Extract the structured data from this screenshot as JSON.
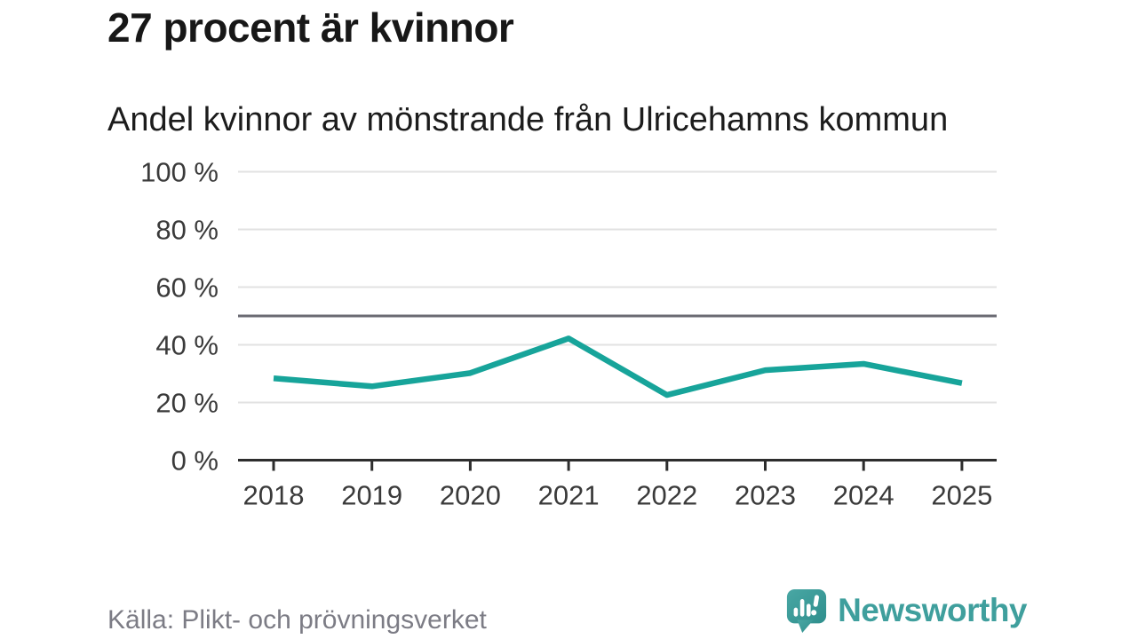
{
  "chart_data": {
    "type": "line",
    "title": "27 procent är kvinnor",
    "subtitle": "Andel kvinnor av mönstrande från Ulricehamns kommun",
    "source": "Källa: Plikt- och prövningsverket",
    "x": [
      2018,
      2019,
      2020,
      2021,
      2022,
      2023,
      2024,
      2025
    ],
    "xtick_labels": [
      "2018",
      "2019",
      "2020",
      "2021",
      "2022",
      "2023",
      "2024",
      "2025"
    ],
    "series": [
      {
        "name": "Andel kvinnor av mönstrande (%)",
        "values": [
          28.4,
          25.6,
          30.2,
          42.2,
          22.6,
          31.2,
          33.4,
          26.7
        ]
      }
    ],
    "ylim": [
      0,
      100
    ],
    "yticks": [
      0,
      20,
      40,
      60,
      80,
      100
    ],
    "ytick_labels": [
      "0 %",
      "20 %",
      "40 %",
      "60 %",
      "80 %",
      "100 %"
    ],
    "reference_line": 50,
    "grid": true,
    "legend": "none",
    "colors": {
      "line": "#17a49a",
      "reference_line": "#6a6a73",
      "axis": "#2d2d2d",
      "grid": "#e2e2e2"
    }
  },
  "footer": {
    "brand": "Newsworthy",
    "brand_color": "#3f9f9d"
  }
}
